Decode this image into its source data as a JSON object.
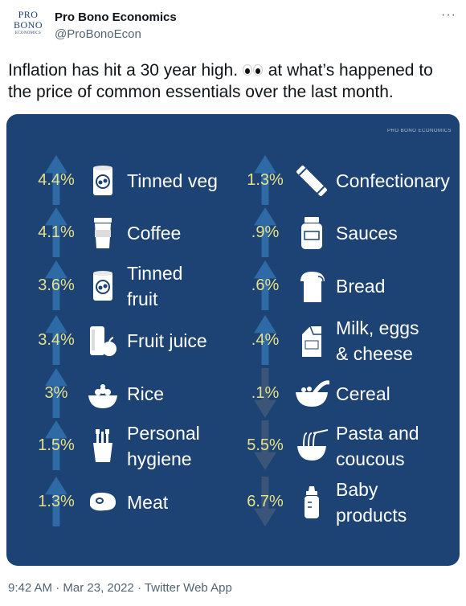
{
  "account": {
    "logo_line1": "PRO",
    "logo_line2": "BONO",
    "logo_line3": "ECONOMICS",
    "name": "Pro Bono Economics",
    "handle": "@ProBonoEcon",
    "more": "···"
  },
  "tweet": {
    "text_before": "Inflation has hit a 30 year high.",
    "text_after": "at what’s happened to the price of common essentials over the last month.",
    "emoji_name": "eyes-emoji"
  },
  "graphic": {
    "watermark": "PRO BONO ECONOMICS",
    "colors": {
      "background": "#1c4373",
      "arrow": "#2e6aa6",
      "arrow_down": "#3a5577",
      "percent": "#e6e08a",
      "label": "#ffffff"
    },
    "left_items": [
      {
        "pct": "4.4%",
        "label1": "Tinned veg",
        "label2": "",
        "icon": "can-icon",
        "direction": "up"
      },
      {
        "pct": "4.1%",
        "label1": "Coffee",
        "label2": "",
        "icon": "coffee-cup-icon",
        "direction": "up"
      },
      {
        "pct": "3.6%",
        "label1": "Tinned",
        "label2": "fruit",
        "icon": "can-icon",
        "direction": "up"
      },
      {
        "pct": "3.4%",
        "label1": "Fruit juice",
        "label2": "",
        "icon": "juice-apple-icon",
        "direction": "up"
      },
      {
        "pct": "3%",
        "label1": "Rice",
        "label2": "",
        "icon": "rice-bowl-icon",
        "direction": "up"
      },
      {
        "pct": "1.5%",
        "label1": "Personal",
        "label2": "hygiene",
        "icon": "toothbrush-cup-icon",
        "direction": "up"
      },
      {
        "pct": "1.3%",
        "label1": "Meat",
        "label2": "",
        "icon": "steak-icon",
        "direction": "up"
      }
    ],
    "right_items": [
      {
        "pct": "1.3%",
        "label1": "Confectionary",
        "label2": "",
        "icon": "candy-bar-icon",
        "direction": "up"
      },
      {
        "pct": ".9%",
        "label1": "Sauces",
        "label2": "",
        "icon": "sauce-jar-icon",
        "direction": "up"
      },
      {
        "pct": ".6%",
        "label1": "Bread",
        "label2": "",
        "icon": "bread-icon",
        "direction": "up"
      },
      {
        "pct": ".4%",
        "label1": "Milk, eggs",
        "label2": "& cheese",
        "icon": "milk-carton-icon",
        "direction": "up"
      },
      {
        "pct": ".1%",
        "label1": "Cereal",
        "label2": "",
        "icon": "cereal-bowl-icon",
        "direction": "down"
      },
      {
        "pct": "5.5%",
        "label1": "Pasta and",
        "label2": "coucous",
        "icon": "noodle-bowl-icon",
        "direction": "down"
      },
      {
        "pct": "6.7%",
        "label1": "Baby",
        "label2": "products",
        "icon": "baby-bottle-icon",
        "direction": "down"
      }
    ]
  },
  "footer": {
    "time": "9:42 AM",
    "sep1": " · ",
    "date": "Mar 23, 2022",
    "sep2": " · ",
    "source": "Twitter Web App"
  }
}
